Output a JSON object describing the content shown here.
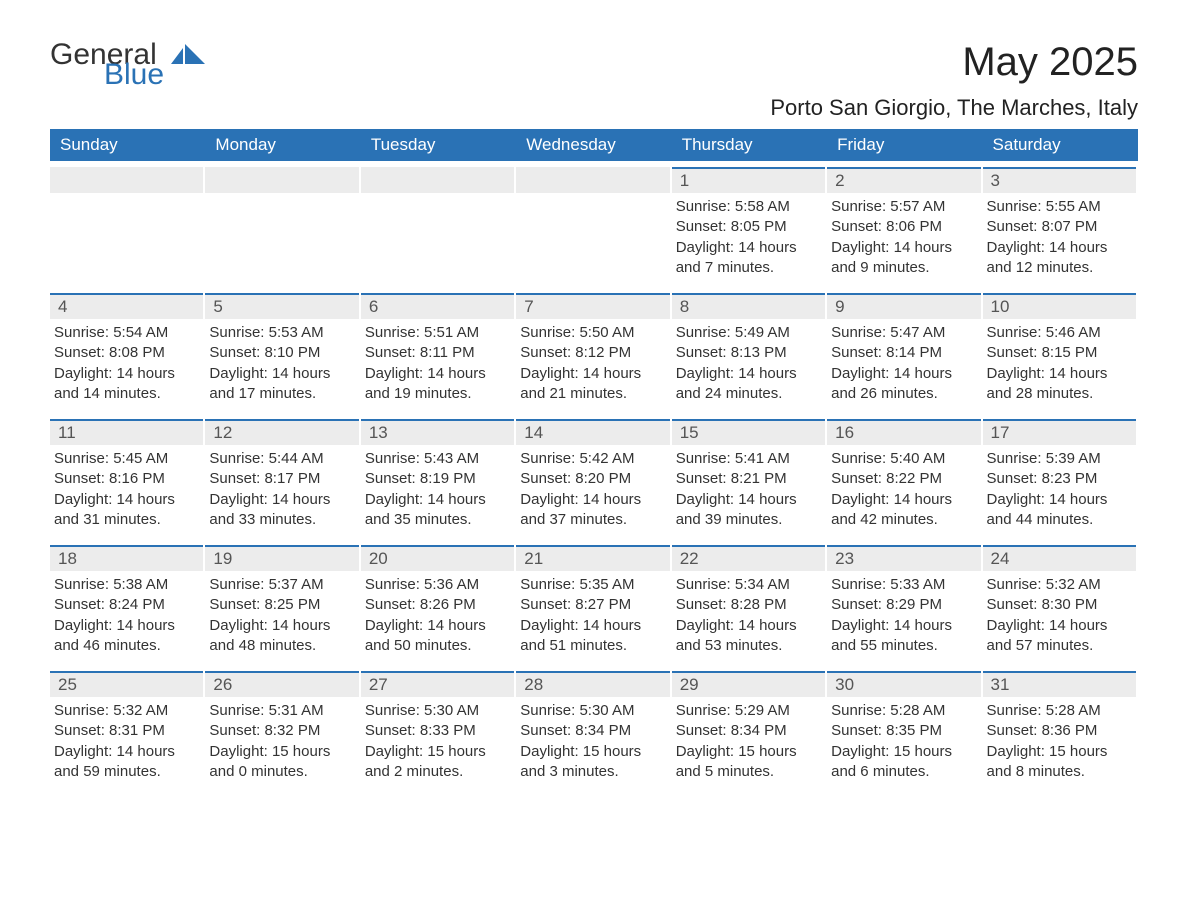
{
  "brand": {
    "word1": "General",
    "word2": "Blue",
    "accent_color": "#2a72b5"
  },
  "title": "May 2025",
  "location": "Porto San Giorgio, The Marches, Italy",
  "weekdays": [
    "Sunday",
    "Monday",
    "Tuesday",
    "Wednesday",
    "Thursday",
    "Friday",
    "Saturday"
  ],
  "colors": {
    "header_bg": "#2a72b5",
    "header_text": "#ffffff",
    "daynum_bg": "#ececec",
    "daynum_border": "#2a72b5",
    "text": "#333333",
    "background": "#ffffff"
  },
  "weeks": [
    [
      {
        "day": "",
        "sunrise": "",
        "sunset": "",
        "daylight": ""
      },
      {
        "day": "",
        "sunrise": "",
        "sunset": "",
        "daylight": ""
      },
      {
        "day": "",
        "sunrise": "",
        "sunset": "",
        "daylight": ""
      },
      {
        "day": "",
        "sunrise": "",
        "sunset": "",
        "daylight": ""
      },
      {
        "day": "1",
        "sunrise": "Sunrise: 5:58 AM",
        "sunset": "Sunset: 8:05 PM",
        "daylight": "Daylight: 14 hours and 7 minutes."
      },
      {
        "day": "2",
        "sunrise": "Sunrise: 5:57 AM",
        "sunset": "Sunset: 8:06 PM",
        "daylight": "Daylight: 14 hours and 9 minutes."
      },
      {
        "day": "3",
        "sunrise": "Sunrise: 5:55 AM",
        "sunset": "Sunset: 8:07 PM",
        "daylight": "Daylight: 14 hours and 12 minutes."
      }
    ],
    [
      {
        "day": "4",
        "sunrise": "Sunrise: 5:54 AM",
        "sunset": "Sunset: 8:08 PM",
        "daylight": "Daylight: 14 hours and 14 minutes."
      },
      {
        "day": "5",
        "sunrise": "Sunrise: 5:53 AM",
        "sunset": "Sunset: 8:10 PM",
        "daylight": "Daylight: 14 hours and 17 minutes."
      },
      {
        "day": "6",
        "sunrise": "Sunrise: 5:51 AM",
        "sunset": "Sunset: 8:11 PM",
        "daylight": "Daylight: 14 hours and 19 minutes."
      },
      {
        "day": "7",
        "sunrise": "Sunrise: 5:50 AM",
        "sunset": "Sunset: 8:12 PM",
        "daylight": "Daylight: 14 hours and 21 minutes."
      },
      {
        "day": "8",
        "sunrise": "Sunrise: 5:49 AM",
        "sunset": "Sunset: 8:13 PM",
        "daylight": "Daylight: 14 hours and 24 minutes."
      },
      {
        "day": "9",
        "sunrise": "Sunrise: 5:47 AM",
        "sunset": "Sunset: 8:14 PM",
        "daylight": "Daylight: 14 hours and 26 minutes."
      },
      {
        "day": "10",
        "sunrise": "Sunrise: 5:46 AM",
        "sunset": "Sunset: 8:15 PM",
        "daylight": "Daylight: 14 hours and 28 minutes."
      }
    ],
    [
      {
        "day": "11",
        "sunrise": "Sunrise: 5:45 AM",
        "sunset": "Sunset: 8:16 PM",
        "daylight": "Daylight: 14 hours and 31 minutes."
      },
      {
        "day": "12",
        "sunrise": "Sunrise: 5:44 AM",
        "sunset": "Sunset: 8:17 PM",
        "daylight": "Daylight: 14 hours and 33 minutes."
      },
      {
        "day": "13",
        "sunrise": "Sunrise: 5:43 AM",
        "sunset": "Sunset: 8:19 PM",
        "daylight": "Daylight: 14 hours and 35 minutes."
      },
      {
        "day": "14",
        "sunrise": "Sunrise: 5:42 AM",
        "sunset": "Sunset: 8:20 PM",
        "daylight": "Daylight: 14 hours and 37 minutes."
      },
      {
        "day": "15",
        "sunrise": "Sunrise: 5:41 AM",
        "sunset": "Sunset: 8:21 PM",
        "daylight": "Daylight: 14 hours and 39 minutes."
      },
      {
        "day": "16",
        "sunrise": "Sunrise: 5:40 AM",
        "sunset": "Sunset: 8:22 PM",
        "daylight": "Daylight: 14 hours and 42 minutes."
      },
      {
        "day": "17",
        "sunrise": "Sunrise: 5:39 AM",
        "sunset": "Sunset: 8:23 PM",
        "daylight": "Daylight: 14 hours and 44 minutes."
      }
    ],
    [
      {
        "day": "18",
        "sunrise": "Sunrise: 5:38 AM",
        "sunset": "Sunset: 8:24 PM",
        "daylight": "Daylight: 14 hours and 46 minutes."
      },
      {
        "day": "19",
        "sunrise": "Sunrise: 5:37 AM",
        "sunset": "Sunset: 8:25 PM",
        "daylight": "Daylight: 14 hours and 48 minutes."
      },
      {
        "day": "20",
        "sunrise": "Sunrise: 5:36 AM",
        "sunset": "Sunset: 8:26 PM",
        "daylight": "Daylight: 14 hours and 50 minutes."
      },
      {
        "day": "21",
        "sunrise": "Sunrise: 5:35 AM",
        "sunset": "Sunset: 8:27 PM",
        "daylight": "Daylight: 14 hours and 51 minutes."
      },
      {
        "day": "22",
        "sunrise": "Sunrise: 5:34 AM",
        "sunset": "Sunset: 8:28 PM",
        "daylight": "Daylight: 14 hours and 53 minutes."
      },
      {
        "day": "23",
        "sunrise": "Sunrise: 5:33 AM",
        "sunset": "Sunset: 8:29 PM",
        "daylight": "Daylight: 14 hours and 55 minutes."
      },
      {
        "day": "24",
        "sunrise": "Sunrise: 5:32 AM",
        "sunset": "Sunset: 8:30 PM",
        "daylight": "Daylight: 14 hours and 57 minutes."
      }
    ],
    [
      {
        "day": "25",
        "sunrise": "Sunrise: 5:32 AM",
        "sunset": "Sunset: 8:31 PM",
        "daylight": "Daylight: 14 hours and 59 minutes."
      },
      {
        "day": "26",
        "sunrise": "Sunrise: 5:31 AM",
        "sunset": "Sunset: 8:32 PM",
        "daylight": "Daylight: 15 hours and 0 minutes."
      },
      {
        "day": "27",
        "sunrise": "Sunrise: 5:30 AM",
        "sunset": "Sunset: 8:33 PM",
        "daylight": "Daylight: 15 hours and 2 minutes."
      },
      {
        "day": "28",
        "sunrise": "Sunrise: 5:30 AM",
        "sunset": "Sunset: 8:34 PM",
        "daylight": "Daylight: 15 hours and 3 minutes."
      },
      {
        "day": "29",
        "sunrise": "Sunrise: 5:29 AM",
        "sunset": "Sunset: 8:34 PM",
        "daylight": "Daylight: 15 hours and 5 minutes."
      },
      {
        "day": "30",
        "sunrise": "Sunrise: 5:28 AM",
        "sunset": "Sunset: 8:35 PM",
        "daylight": "Daylight: 15 hours and 6 minutes."
      },
      {
        "day": "31",
        "sunrise": "Sunrise: 5:28 AM",
        "sunset": "Sunset: 8:36 PM",
        "daylight": "Daylight: 15 hours and 8 minutes."
      }
    ]
  ]
}
